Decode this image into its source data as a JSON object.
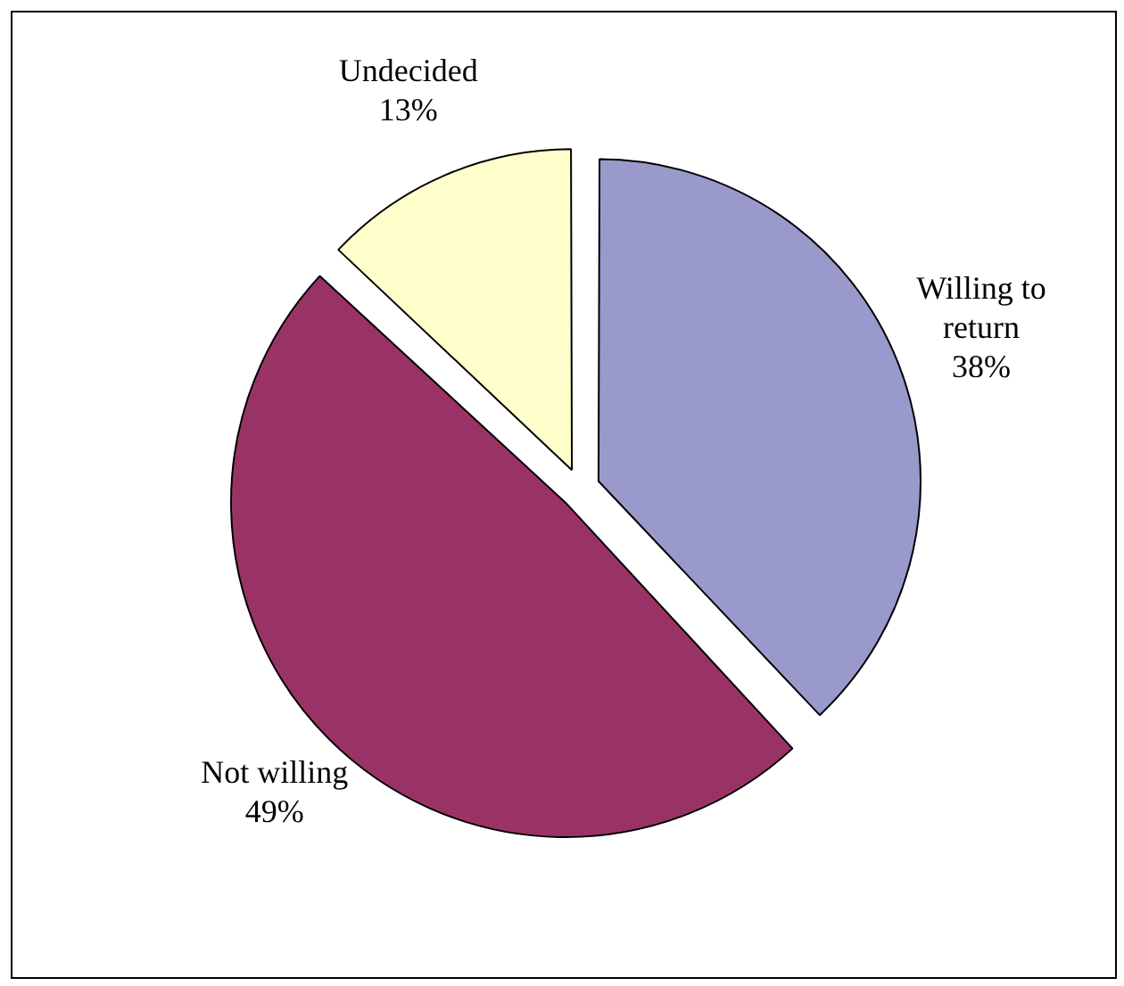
{
  "chart_data": {
    "type": "pie",
    "categories": [
      "Willing to return",
      "Not willing",
      "Undecided"
    ],
    "values": [
      38,
      49,
      13
    ],
    "colors": [
      "#9999cc",
      "#993366",
      "#ffffcc"
    ],
    "value_labels": [
      "38%",
      "49%",
      "13%"
    ],
    "legend": false
  }
}
